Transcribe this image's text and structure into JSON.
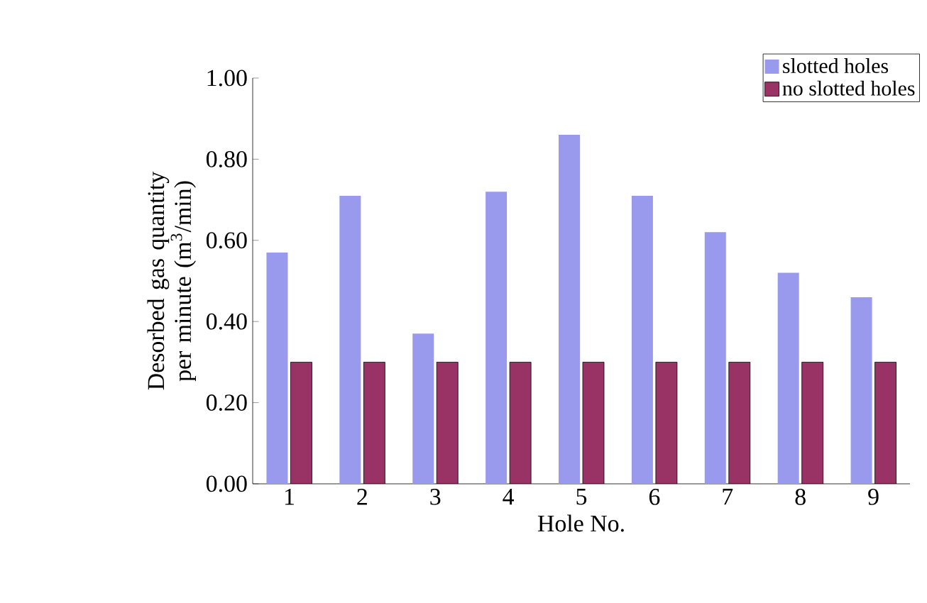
{
  "chart_data": {
    "type": "bar",
    "xlabel": "Hole No.",
    "ylabel": "Desorbed gas quantity per minute (m$^{3}$/min)",
    "categories": [
      "1",
      "2",
      "3",
      "4",
      "5",
      "6",
      "7",
      "8",
      "9"
    ],
    "series": [
      {
        "name": "slotted holes",
        "color": "#9999ee",
        "values": [
          0.57,
          0.71,
          0.37,
          0.72,
          0.86,
          0.71,
          0.62,
          0.52,
          0.46
        ]
      },
      {
        "name": "no slotted holes",
        "color": "#993366",
        "values": [
          0.3,
          0.3,
          0.3,
          0.3,
          0.3,
          0.3,
          0.3,
          0.3,
          0.3
        ]
      }
    ],
    "ylim": [
      0,
      1
    ],
    "yticks": [
      {
        "value": 0,
        "label": "0.00"
      },
      {
        "value": 0.2,
        "label": "0.20"
      },
      {
        "value": 0.4,
        "label": "0.40"
      },
      {
        "value": 0.6,
        "label": "0.60"
      },
      {
        "value": 0.8,
        "label": "0.80"
      },
      {
        "value": 1,
        "label": "1.00"
      }
    ],
    "grid": false,
    "legend": "top right"
  }
}
